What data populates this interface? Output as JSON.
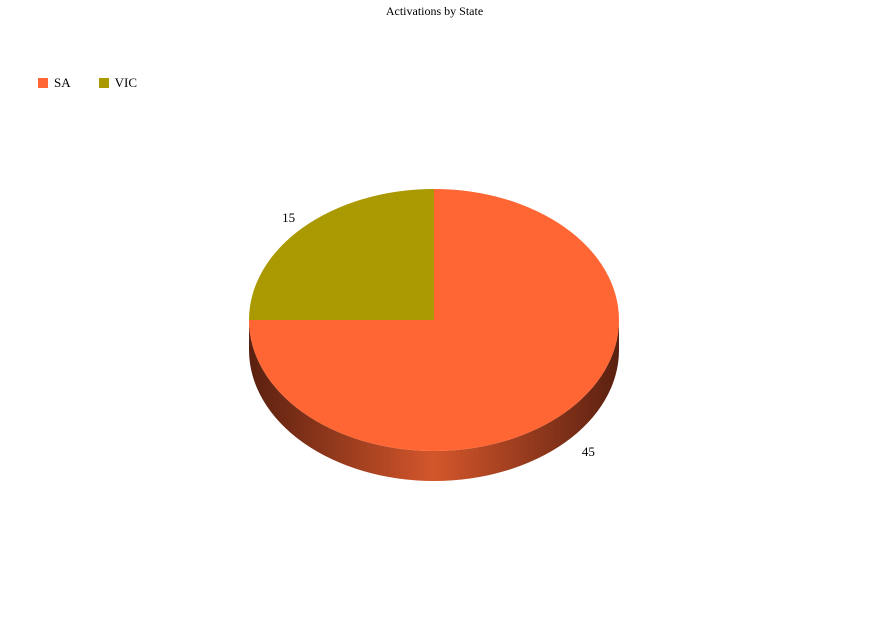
{
  "chart_data": {
    "type": "pie",
    "style": "3d",
    "title": "Activations by State",
    "legend_position": "top-left",
    "categories": [
      "SA",
      "VIC"
    ],
    "values": [
      45,
      15
    ],
    "colors": [
      "#FF6633",
      "#AA9900"
    ],
    "data_labels": [
      "45",
      "15"
    ]
  }
}
